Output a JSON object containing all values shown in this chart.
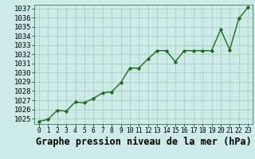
{
  "x": [
    0,
    1,
    2,
    3,
    4,
    5,
    6,
    7,
    8,
    9,
    10,
    11,
    12,
    13,
    14,
    15,
    16,
    17,
    18,
    19,
    20,
    21,
    22,
    23
  ],
  "y": [
    1024.7,
    1024.9,
    1025.9,
    1025.8,
    1026.8,
    1026.7,
    1027.2,
    1027.8,
    1027.9,
    1028.9,
    1030.5,
    1030.5,
    1031.5,
    1032.4,
    1032.4,
    1031.2,
    1032.4,
    1032.4,
    1032.4,
    1032.4,
    1034.7,
    1032.5,
    1035.9,
    1037.1
  ],
  "ylim_min": 1024.4,
  "ylim_max": 1037.4,
  "yticks": [
    1025,
    1026,
    1027,
    1028,
    1029,
    1030,
    1031,
    1032,
    1033,
    1034,
    1035,
    1036,
    1037
  ],
  "xticks": [
    0,
    1,
    2,
    3,
    4,
    5,
    6,
    7,
    8,
    9,
    10,
    11,
    12,
    13,
    14,
    15,
    16,
    17,
    18,
    19,
    20,
    21,
    22,
    23
  ],
  "xlabel": "Graphe pression niveau de la mer (hPa)",
  "line_color": "#1a6e1a",
  "marker": "D",
  "marker_size": 2.2,
  "line_width": 1.0,
  "bg_color": "#cceae7",
  "grid_color": "#aaccbb",
  "tick_fontsize": 6.5,
  "xlabel_fontsize": 8.5
}
